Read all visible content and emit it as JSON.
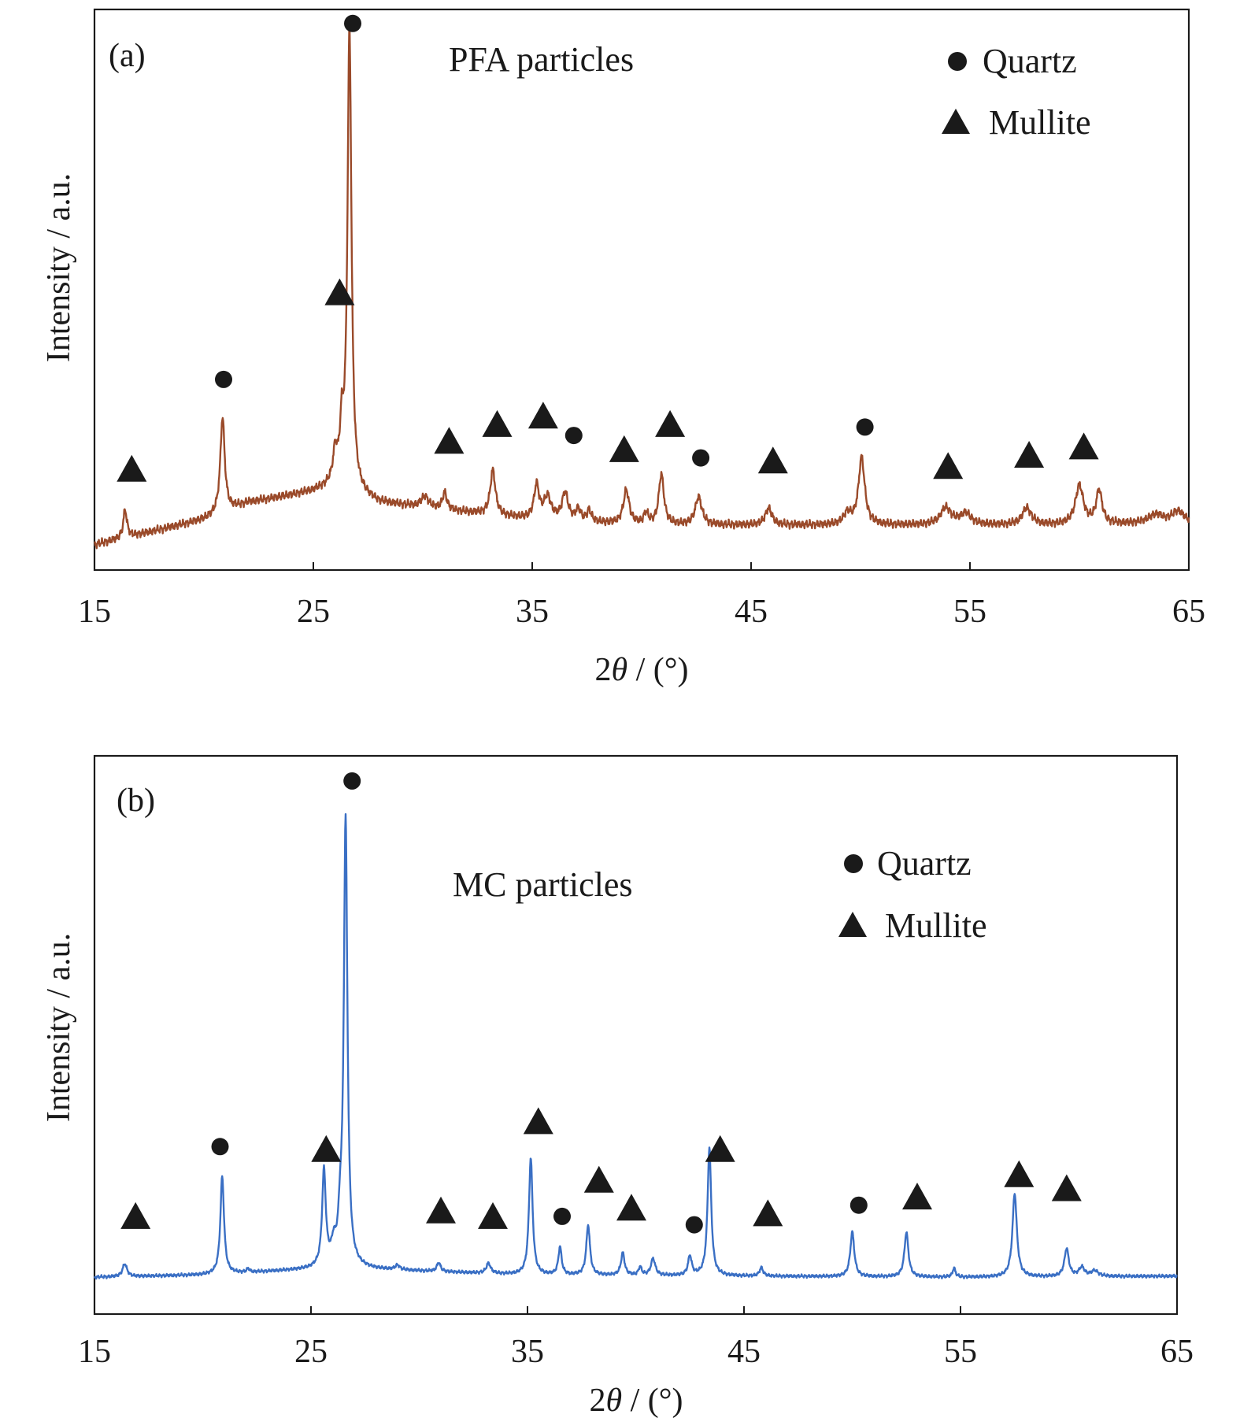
{
  "chart_data": [
    {
      "type": "line",
      "panel_label": "(a)",
      "sample_label": "PFA particles",
      "xlabel_prefix": "2",
      "xlabel_symbol": "θ",
      "xlabel_suffix": " / (°)",
      "ylabel": "Intensity / a.u.",
      "xlim": [
        15,
        65
      ],
      "ylim": [
        0,
        100
      ],
      "xticks": [
        "15",
        "25",
        "35",
        "45",
        "55",
        "65"
      ],
      "line_color": "#9a4a2a",
      "baseline": [
        [
          15,
          4.5
        ],
        [
          20,
          9
        ],
        [
          22,
          12
        ],
        [
          25,
          14
        ],
        [
          26,
          15
        ],
        [
          28,
          12
        ],
        [
          35,
          9
        ],
        [
          40,
          8
        ],
        [
          45,
          8
        ],
        [
          50,
          8
        ],
        [
          55,
          8
        ],
        [
          60,
          8
        ],
        [
          65,
          8.5
        ]
      ],
      "peaks": [
        {
          "x": 16.4,
          "h": 5,
          "w": 0.1
        },
        {
          "x": 20.85,
          "h": 17,
          "w": 0.12
        },
        {
          "x": 26.0,
          "h": 5,
          "w": 0.12
        },
        {
          "x": 26.3,
          "h": 9,
          "w": 0.1
        },
        {
          "x": 26.65,
          "h": 82,
          "w": 0.11
        },
        {
          "x": 30.1,
          "h": 2,
          "w": 0.2
        },
        {
          "x": 31.0,
          "h": 3,
          "w": 0.12
        },
        {
          "x": 33.2,
          "h": 8,
          "w": 0.14
        },
        {
          "x": 35.2,
          "h": 6,
          "w": 0.14
        },
        {
          "x": 35.7,
          "h": 4,
          "w": 0.2
        },
        {
          "x": 36.5,
          "h": 5,
          "w": 0.16
        },
        {
          "x": 37.1,
          "h": 2,
          "w": 0.14
        },
        {
          "x": 37.6,
          "h": 2,
          "w": 0.12
        },
        {
          "x": 39.3,
          "h": 6,
          "w": 0.16
        },
        {
          "x": 40.2,
          "h": 2,
          "w": 0.12
        },
        {
          "x": 40.9,
          "h": 9,
          "w": 0.14
        },
        {
          "x": 42.6,
          "h": 5,
          "w": 0.18
        },
        {
          "x": 45.8,
          "h": 3,
          "w": 0.18
        },
        {
          "x": 49.4,
          "h": 2,
          "w": 0.2
        },
        {
          "x": 50.05,
          "h": 12,
          "w": 0.17
        },
        {
          "x": 53.9,
          "h": 3,
          "w": 0.3
        },
        {
          "x": 54.8,
          "h": 2,
          "w": 0.3
        },
        {
          "x": 57.6,
          "h": 3,
          "w": 0.25
        },
        {
          "x": 60.0,
          "h": 7,
          "w": 0.22
        },
        {
          "x": 60.9,
          "h": 6,
          "w": 0.16
        },
        {
          "x": 63.5,
          "h": 1.5,
          "w": 0.4
        },
        {
          "x": 64.5,
          "h": 2,
          "w": 0.3
        }
      ],
      "markers": [
        {
          "phase": "quartz",
          "x": 26.8,
          "y": 97.5
        },
        {
          "phase": "mullite",
          "x": 26.2,
          "y": 49.5
        },
        {
          "phase": "quartz",
          "x": 20.9,
          "y": 34
        },
        {
          "phase": "mullite",
          "x": 16.7,
          "y": 18
        },
        {
          "phase": "mullite",
          "x": 31.2,
          "y": 23
        },
        {
          "phase": "mullite",
          "x": 33.4,
          "y": 26
        },
        {
          "phase": "mullite",
          "x": 35.5,
          "y": 27.5
        },
        {
          "phase": "quartz",
          "x": 36.9,
          "y": 24
        },
        {
          "phase": "mullite",
          "x": 39.2,
          "y": 21.5
        },
        {
          "phase": "mullite",
          "x": 41.3,
          "y": 26
        },
        {
          "phase": "quartz",
          "x": 42.7,
          "y": 20
        },
        {
          "phase": "mullite",
          "x": 46.0,
          "y": 19.5
        },
        {
          "phase": "quartz",
          "x": 50.2,
          "y": 25.5
        },
        {
          "phase": "mullite",
          "x": 54.0,
          "y": 18.5
        },
        {
          "phase": "mullite",
          "x": 57.7,
          "y": 20.5
        },
        {
          "phase": "mullite",
          "x": 60.2,
          "y": 22
        }
      ],
      "legend": [
        {
          "phase": "quartz",
          "label": "Quartz"
        },
        {
          "phase": "mullite",
          "label": "Mullite"
        }
      ],
      "legend_position": "top-right"
    },
    {
      "type": "line",
      "panel_label": "(b)",
      "sample_label": "MC particles",
      "xlabel_prefix": "2",
      "xlabel_symbol": "θ",
      "xlabel_suffix": " / (°)",
      "ylabel": "Intensity / a.u.",
      "xlim": [
        15,
        65
      ],
      "ylim": [
        0,
        100
      ],
      "xticks": [
        "15",
        "25",
        "35",
        "45",
        "55",
        "65"
      ],
      "line_color": "#3a6fc4",
      "baseline": [
        [
          15,
          6.6
        ],
        [
          20,
          7
        ],
        [
          25,
          8
        ],
        [
          26,
          8.5
        ],
        [
          28,
          8
        ],
        [
          35,
          7
        ],
        [
          45,
          6.8
        ],
        [
          55,
          6.6
        ],
        [
          65,
          6.8
        ]
      ],
      "peaks": [
        {
          "x": 16.4,
          "h": 2.3,
          "w": 0.12
        },
        {
          "x": 20.9,
          "h": 17.5,
          "w": 0.1
        },
        {
          "x": 22.1,
          "h": 0.6,
          "w": 0.08
        },
        {
          "x": 25.6,
          "h": 17,
          "w": 0.1
        },
        {
          "x": 26.05,
          "h": 3,
          "w": 0.12
        },
        {
          "x": 26.35,
          "h": 6,
          "w": 0.1
        },
        {
          "x": 26.6,
          "h": 80,
          "w": 0.1
        },
        {
          "x": 29.0,
          "h": 0.8,
          "w": 0.12
        },
        {
          "x": 30.9,
          "h": 1.6,
          "w": 0.1
        },
        {
          "x": 33.2,
          "h": 1.8,
          "w": 0.12
        },
        {
          "x": 35.15,
          "h": 21,
          "w": 0.1
        },
        {
          "x": 36.5,
          "h": 5,
          "w": 0.09
        },
        {
          "x": 37.8,
          "h": 9,
          "w": 0.1
        },
        {
          "x": 39.4,
          "h": 4,
          "w": 0.1
        },
        {
          "x": 40.2,
          "h": 1.5,
          "w": 0.08
        },
        {
          "x": 40.8,
          "h": 3,
          "w": 0.12
        },
        {
          "x": 42.5,
          "h": 3.5,
          "w": 0.1
        },
        {
          "x": 43.4,
          "h": 23,
          "w": 0.1
        },
        {
          "x": 45.8,
          "h": 1.5,
          "w": 0.1
        },
        {
          "x": 50.0,
          "h": 8,
          "w": 0.11
        },
        {
          "x": 52.5,
          "h": 8,
          "w": 0.11
        },
        {
          "x": 54.7,
          "h": 1.6,
          "w": 0.08
        },
        {
          "x": 57.5,
          "h": 15,
          "w": 0.12
        },
        {
          "x": 59.9,
          "h": 5,
          "w": 0.12
        },
        {
          "x": 60.6,
          "h": 1.6,
          "w": 0.15
        },
        {
          "x": 61.2,
          "h": 1,
          "w": 0.2
        }
      ],
      "markers": [
        {
          "phase": "quartz",
          "x": 26.9,
          "y": 95.5
        },
        {
          "phase": "quartz",
          "x": 20.8,
          "y": 30
        },
        {
          "phase": "mullite",
          "x": 25.7,
          "y": 29.5
        },
        {
          "phase": "mullite",
          "x": 16.9,
          "y": 17.5
        },
        {
          "phase": "mullite",
          "x": 31.0,
          "y": 18.5
        },
        {
          "phase": "mullite",
          "x": 33.4,
          "y": 17.5
        },
        {
          "phase": "mullite",
          "x": 35.5,
          "y": 34.5
        },
        {
          "phase": "quartz",
          "x": 36.6,
          "y": 17.5
        },
        {
          "phase": "mullite",
          "x": 38.3,
          "y": 24
        },
        {
          "phase": "mullite",
          "x": 39.8,
          "y": 19
        },
        {
          "phase": "quartz",
          "x": 42.7,
          "y": 16
        },
        {
          "phase": "mullite",
          "x": 43.9,
          "y": 29.5
        },
        {
          "phase": "mullite",
          "x": 46.1,
          "y": 18
        },
        {
          "phase": "quartz",
          "x": 50.3,
          "y": 19.5
        },
        {
          "phase": "mullite",
          "x": 53.0,
          "y": 21
        },
        {
          "phase": "mullite",
          "x": 57.7,
          "y": 25
        },
        {
          "phase": "mullite",
          "x": 59.9,
          "y": 22.5
        }
      ],
      "legend": [
        {
          "phase": "quartz",
          "label": "Quartz"
        },
        {
          "phase": "mullite",
          "label": "Mullite"
        }
      ],
      "legend_position": "top-right"
    }
  ]
}
